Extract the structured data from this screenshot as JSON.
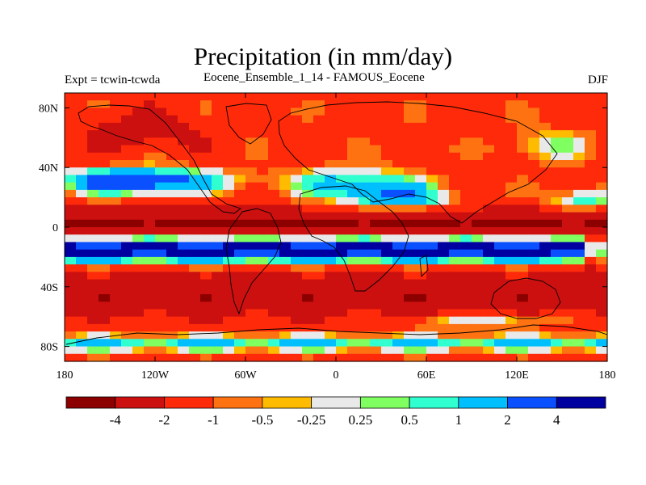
{
  "header": {
    "title": "Precipitation (in mm/day)",
    "left_label": "Expt = tcwin-tcwda",
    "center_label": "Eocene_Ensemble_1_14 - FAMOUS_Eocene",
    "right_label": "DJF"
  },
  "map": {
    "lon_range": [
      -180,
      180
    ],
    "lat_range": [
      -90,
      90
    ],
    "lon_ticks": [
      {
        "value": -180,
        "label": "180"
      },
      {
        "value": -120,
        "label": "120W"
      },
      {
        "value": -60,
        "label": "60W"
      },
      {
        "value": 0,
        "label": "0"
      },
      {
        "value": 60,
        "label": "60E"
      },
      {
        "value": 120,
        "label": "120E"
      },
      {
        "value": 180,
        "label": "180"
      }
    ],
    "lat_ticks": [
      {
        "value": 80,
        "label": "80N"
      },
      {
        "value": 40,
        "label": "40N"
      },
      {
        "value": 0,
        "label": "0"
      },
      {
        "value": -40,
        "label": "40S"
      },
      {
        "value": -80,
        "label": "80S"
      }
    ]
  },
  "colorbar": {
    "colors": [
      "#8c0000",
      "#cc1010",
      "#ff2a0a",
      "#ff7212",
      "#ffbb00",
      "#e9e9e9",
      "#80ff60",
      "#30ffd0",
      "#00bfff",
      "#0a50ff",
      "#0000a0"
    ],
    "labels": [
      "-4",
      "-2",
      "-1",
      "-0.5",
      "-0.25",
      "0.25",
      "0.5",
      "1",
      "2",
      "4"
    ]
  },
  "chart_data": {
    "type": "heatmap",
    "title": "Precipitation (in mm/day)",
    "xlabel": "",
    "ylabel": "",
    "x_range": [
      -180,
      180
    ],
    "y_range": [
      -90,
      90
    ],
    "color_levels": [
      -4,
      -2,
      -1,
      -0.5,
      -0.25,
      0.25,
      0.5,
      1,
      2,
      4
    ],
    "features": [
      {
        "name": "northern wet band",
        "lat_range": [
          25,
          38
        ],
        "lon_range": [
          -180,
          -70
        ],
        "value": 2
      },
      {
        "name": "equatorial dry band",
        "lat_range": [
          -5,
          8
        ],
        "lon_range": [
          -180,
          180
        ],
        "value": -4
      },
      {
        "name": "southern wet band",
        "lat_range": [
          -22,
          -10
        ],
        "lon_range": [
          -180,
          170
        ],
        "value": 2
      },
      {
        "name": "southern dry band",
        "lat_range": [
          -60,
          -30
        ],
        "lon_range": [
          -180,
          180
        ],
        "value": -2
      }
    ]
  }
}
